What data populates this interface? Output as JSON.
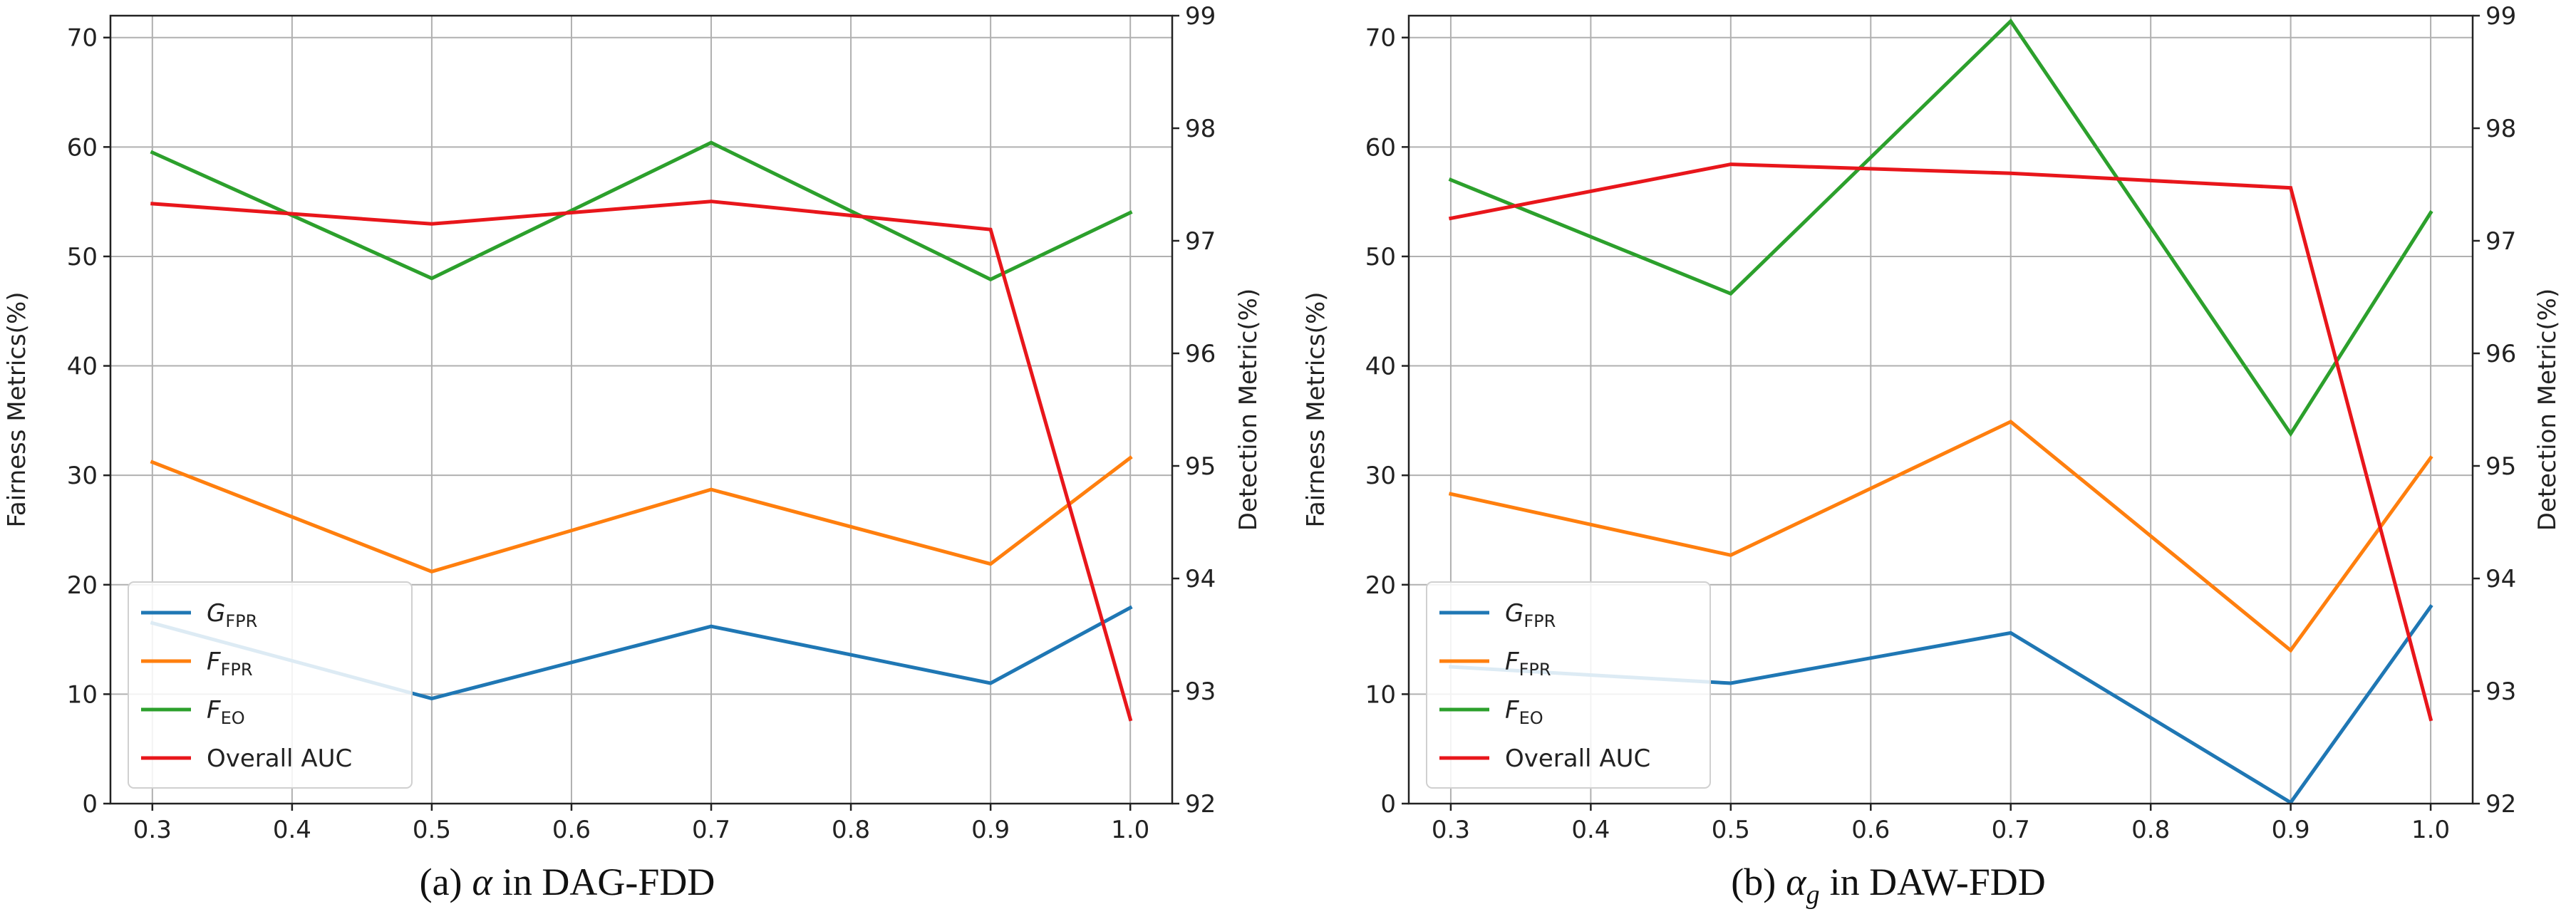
{
  "chart_data": [
    {
      "type": "line",
      "caption": {
        "prefix": "(a)",
        "symbol": "α",
        "symbol_sub": "",
        "suffix": "in DAG-FDD"
      },
      "categories": [
        "0.3",
        "0.4",
        "0.5",
        "0.6",
        "0.7",
        "0.8",
        "0.9",
        "1.0"
      ],
      "x": [
        0.3,
        0.5,
        0.7,
        0.9,
        1.0
      ],
      "xlim": [
        0.27,
        1.03
      ],
      "ylabel": "Fairness Metrics(%)",
      "ylim": [
        0,
        72
      ],
      "yticks": [
        "0",
        "10",
        "20",
        "30",
        "40",
        "50",
        "60",
        "70"
      ],
      "y2label": "Detection Metric(%)",
      "y2lim": [
        92,
        99
      ],
      "y2ticks": [
        "92",
        "93",
        "94",
        "95",
        "96",
        "97",
        "98",
        "99"
      ],
      "grid": true,
      "legend_position": "lower-left",
      "series": [
        {
          "name": "G",
          "sub": "FPR",
          "color": "#1f77b4",
          "axis": "left",
          "values": [
            16.5,
            9.6,
            16.2,
            11.0,
            17.9
          ]
        },
        {
          "name": "F",
          "sub": "FPR",
          "color": "#ff7f0e",
          "axis": "left",
          "values": [
            31.2,
            21.2,
            28.7,
            21.9,
            31.6
          ]
        },
        {
          "name": "F",
          "sub": "EO",
          "color": "#2ca02c",
          "axis": "left",
          "values": [
            59.5,
            48.0,
            60.4,
            47.9,
            54.0
          ]
        },
        {
          "name": "Overall AUC",
          "sub": "",
          "color": "#e8161b",
          "axis": "right",
          "values": [
            97.33,
            97.15,
            97.35,
            97.1,
            92.75
          ]
        }
      ]
    },
    {
      "type": "line",
      "caption": {
        "prefix": "(b)",
        "symbol": "α",
        "symbol_sub": "g",
        "suffix": "in DAW-FDD"
      },
      "categories": [
        "0.3",
        "0.4",
        "0.5",
        "0.6",
        "0.7",
        "0.8",
        "0.9",
        "1.0"
      ],
      "x": [
        0.3,
        0.5,
        0.7,
        0.9,
        1.0
      ],
      "xlim": [
        0.27,
        1.03
      ],
      "ylabel": "Fairness Metrics(%)",
      "ylim": [
        0,
        72
      ],
      "yticks": [
        "0",
        "10",
        "20",
        "30",
        "40",
        "50",
        "60",
        "70"
      ],
      "y2label": "Detection Metric(%)",
      "y2lim": [
        92,
        99
      ],
      "y2ticks": [
        "92",
        "93",
        "94",
        "95",
        "96",
        "97",
        "98",
        "99"
      ],
      "grid": true,
      "legend_position": "lower-left",
      "series": [
        {
          "name": "G",
          "sub": "FPR",
          "color": "#1f77b4",
          "axis": "left",
          "values": [
            12.5,
            11.0,
            15.6,
            0.1,
            18.0
          ]
        },
        {
          "name": "F",
          "sub": "FPR",
          "color": "#ff7f0e",
          "axis": "left",
          "values": [
            28.3,
            22.7,
            34.9,
            14.0,
            31.6
          ]
        },
        {
          "name": "F",
          "sub": "EO",
          "color": "#2ca02c",
          "axis": "left",
          "values": [
            57.0,
            46.6,
            71.5,
            33.8,
            54.0
          ]
        },
        {
          "name": "Overall AUC",
          "sub": "",
          "color": "#e8161b",
          "axis": "right",
          "values": [
            97.2,
            97.68,
            97.6,
            97.47,
            92.75
          ]
        }
      ]
    }
  ]
}
